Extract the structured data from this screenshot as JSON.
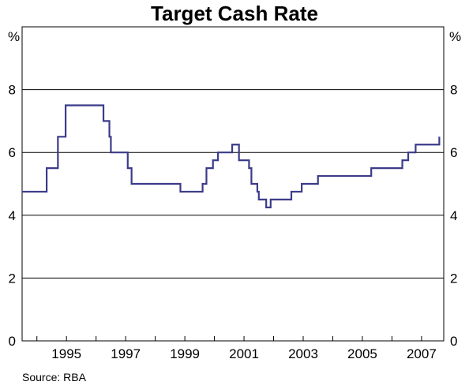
{
  "chart_data": {
    "type": "line",
    "title": "Target Cash Rate",
    "y_unit_left": "%",
    "y_unit_right": "%",
    "source": "Source: RBA",
    "xlim": [
      1993.5,
      2007.75
    ],
    "ylim": [
      0,
      10
    ],
    "y_ticks": [
      0,
      2,
      4,
      6,
      8
    ],
    "x_ticks": [
      {
        "value": 1995,
        "label": "1995"
      },
      {
        "value": 1997,
        "label": "1997"
      },
      {
        "value": 1999,
        "label": "1999"
      },
      {
        "value": 2001,
        "label": "2001"
      },
      {
        "value": 2003,
        "label": "2003"
      },
      {
        "value": 2005,
        "label": "2005"
      },
      {
        "value": 2007,
        "label": "2007"
      }
    ],
    "grid": "horizontal",
    "line_color": "#3b3b8a",
    "series": [
      {
        "step": true,
        "x": [
          1993.5,
          1994.12,
          1994.33,
          1994.6,
          1994.71,
          1994.85,
          1994.97,
          1996.09,
          1996.25,
          1996.37,
          1996.45,
          1996.5,
          1996.85,
          1996.97,
          1997.07,
          1997.15,
          1997.2,
          1997.6,
          1997.9,
          1998.55,
          1998.85,
          1999.35,
          1999.6,
          1999.73,
          1999.8,
          1999.95,
          2000.12,
          2000.6,
          2000.68,
          2000.73,
          2000.83,
          2001.17,
          2001.25,
          2001.35,
          2001.45,
          2001.5,
          2001.75,
          2001.8,
          2001.9,
          2002.6,
          2002.9,
          2002.95,
          2003.5,
          2004.5,
          2004.93,
          2005.3,
          2005.8,
          2006.12,
          2006.35,
          2006.55,
          2006.8,
          2007.22,
          2007.55,
          2007.6
        ],
        "y": [
          4.75,
          4.75,
          5.5,
          5.5,
          6.5,
          6.5,
          7.5,
          7.5,
          7.0,
          7.0,
          6.5,
          6.0,
          6.0,
          6.0,
          5.5,
          5.5,
          5.0,
          5.0,
          5.0,
          5.0,
          4.75,
          4.75,
          5.0,
          5.5,
          5.5,
          5.75,
          6.0,
          6.25,
          6.25,
          6.25,
          5.75,
          5.5,
          5.0,
          5.0,
          4.75,
          4.5,
          4.25,
          4.25,
          4.5,
          4.75,
          4.75,
          5.0,
          5.25,
          5.25,
          5.25,
          5.5,
          5.5,
          5.5,
          5.75,
          6.0,
          6.25,
          6.25,
          6.25,
          6.5
        ]
      }
    ]
  }
}
